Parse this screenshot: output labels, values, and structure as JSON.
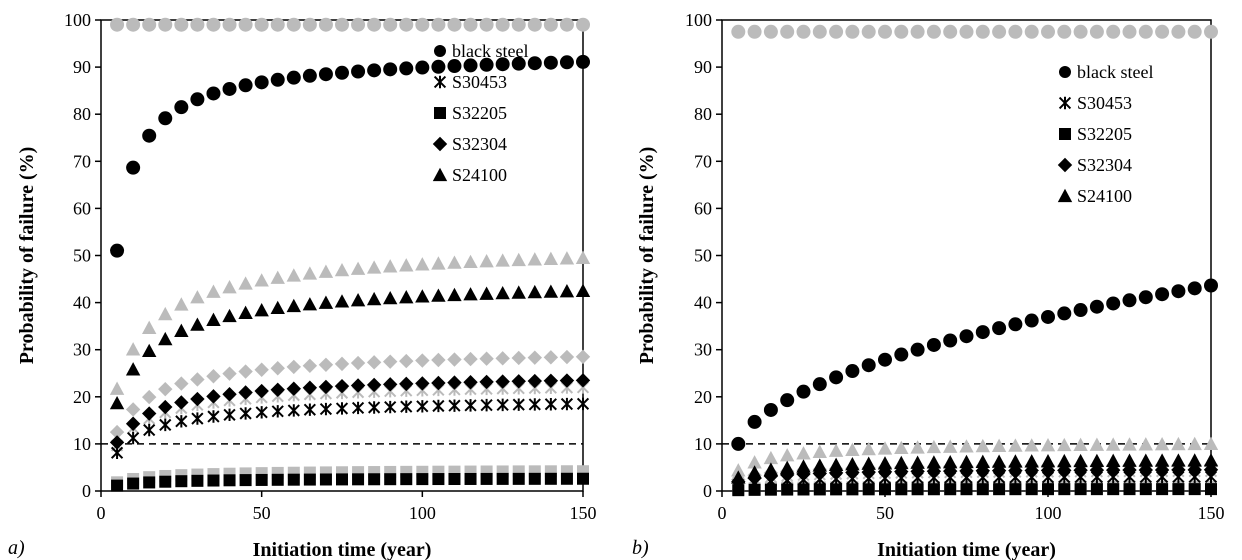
{
  "chart_data": [
    {
      "type": "scatter",
      "panel_label": "a)",
      "xlabel": "Initiation time (year)",
      "ylabel": "Probability of failure (%)",
      "xlim": [
        0,
        150
      ],
      "ylim": [
        0,
        100
      ],
      "xticks": [
        0,
        50,
        100,
        150
      ],
      "yticks": [
        0,
        10,
        20,
        30,
        40,
        50,
        60,
        70,
        80,
        90,
        100
      ],
      "threshold": 10,
      "legend_position": "top-right",
      "legend": [
        {
          "label": "black steel",
          "marker": "circle"
        },
        {
          "label": "S30453",
          "marker": "star"
        },
        {
          "label": "S32205",
          "marker": "square"
        },
        {
          "label": "S32304",
          "marker": "diamond"
        },
        {
          "label": "S24100",
          "marker": "triangle"
        }
      ],
      "series": [
        {
          "name": "black steel",
          "marker": "circle",
          "color": "#bbbbbb",
          "values": [
            99
          ]
        },
        {
          "name": "S30453",
          "marker": "star",
          "color": "#bbbbbb",
          "values": [
            22
          ]
        },
        {
          "name": "S32205",
          "marker": "square",
          "color": "#bbbbbb",
          "values": [
            4.2
          ]
        },
        {
          "name": "S32304",
          "marker": "diamond",
          "color": "#bbbbbb",
          "values": [
            28.5
          ]
        },
        {
          "name": "S24100",
          "marker": "triangle",
          "color": "#bbbbbb",
          "values": [
            49.5
          ]
        },
        {
          "name": "black steel",
          "marker": "circle",
          "color": "#000000",
          "values": [
            94.5
          ]
        },
        {
          "name": "S30453",
          "marker": "star",
          "color": "#000000",
          "values": [
            18.5
          ]
        },
        {
          "name": "S32205",
          "marker": "square",
          "color": "#000000",
          "values": [
            2.6
          ]
        },
        {
          "name": "S32304",
          "marker": "diamond",
          "color": "#000000",
          "values": [
            23.5
          ]
        },
        {
          "name": "S24100",
          "marker": "triangle",
          "color": "#000000",
          "values": [
            42.5
          ]
        }
      ]
    },
    {
      "type": "scatter",
      "panel_label": "b)",
      "xlabel": "Initiation time (year)",
      "ylabel": "Probability of failure (%)",
      "xlim": [
        0,
        150
      ],
      "ylim": [
        0,
        100
      ],
      "xticks": [
        0,
        50,
        100,
        150
      ],
      "yticks": [
        0,
        10,
        20,
        30,
        40,
        50,
        60,
        70,
        80,
        90,
        100
      ],
      "threshold": 10,
      "legend_position": "top-right",
      "legend": [
        {
          "label": "black steel",
          "marker": "circle"
        },
        {
          "label": "S30453",
          "marker": "star"
        },
        {
          "label": "S32205",
          "marker": "square"
        },
        {
          "label": "S32304",
          "marker": "diamond"
        },
        {
          "label": "S24100",
          "marker": "triangle"
        }
      ],
      "series": [
        {
          "name": "black steel",
          "marker": "circle",
          "color": "#bbbbbb",
          "values": [
            97.5
          ]
        },
        {
          "name": "S30453",
          "marker": "star",
          "color": "#bbbbbb",
          "values": [
            4.2
          ]
        },
        {
          "name": "S32205",
          "marker": "square",
          "color": "#bbbbbb",
          "values": [
            0.9
          ]
        },
        {
          "name": "S32304",
          "marker": "diamond",
          "color": "#bbbbbb",
          "values": [
            5.5
          ]
        },
        {
          "name": "S24100",
          "marker": "triangle",
          "color": "#bbbbbb",
          "values": [
            10
          ]
        },
        {
          "name": "black steel",
          "marker": "circle",
          "color": "#000000",
          "values": [
            43.5
          ]
        },
        {
          "name": "S30453",
          "marker": "star",
          "color": "#000000",
          "values": [
            3
          ]
        },
        {
          "name": "S32205",
          "marker": "square",
          "color": "#000000",
          "values": [
            0.4
          ]
        },
        {
          "name": "S32304",
          "marker": "diamond",
          "color": "#000000",
          "values": [
            4.5
          ]
        },
        {
          "name": "S24100",
          "marker": "triangle",
          "color": "#000000",
          "values": [
            6.5
          ]
        }
      ]
    }
  ]
}
